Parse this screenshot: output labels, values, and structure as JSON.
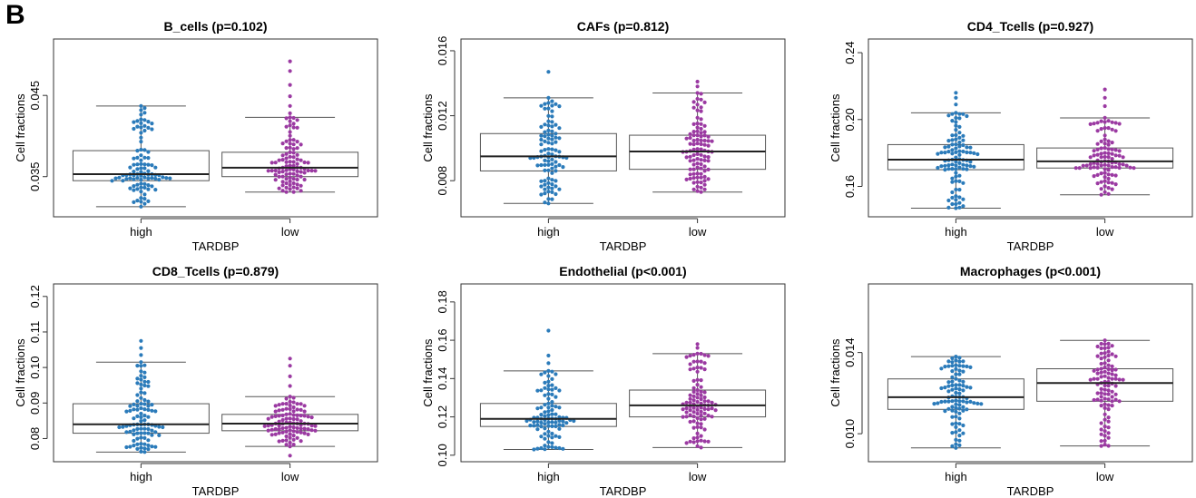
{
  "panel_label": "B",
  "colors": {
    "high": "#2b7bba",
    "low": "#9b3aa2",
    "box": "#555555",
    "median": "#222222"
  },
  "chart_data": [
    {
      "type": "box-beeswarm",
      "title": "B_cells (p=0.102)",
      "xlabel": "TARDBP",
      "ylabel": "Cell fractions",
      "categories": [
        "high",
        "low"
      ],
      "ylim": [
        0.0305,
        0.0515
      ],
      "yticks": [
        0.035,
        0.045
      ],
      "ytick_labels": [
        "0.035",
        "0.045"
      ],
      "groups": [
        {
          "name": "high",
          "min": 0.0313,
          "q1": 0.0345,
          "median": 0.0353,
          "q3": 0.0382,
          "max": 0.0437,
          "outliers": []
        },
        {
          "name": "low",
          "min": 0.0331,
          "q1": 0.035,
          "median": 0.0361,
          "q3": 0.038,
          "max": 0.0423,
          "outliers": [
            0.0428,
            0.0437,
            0.0449,
            0.0463,
            0.048,
            0.0492
          ]
        }
      ]
    },
    {
      "type": "box-beeswarm",
      "title": "CAFs (p=0.812)",
      "xlabel": "TARDBP",
      "ylabel": "Cell fractions",
      "categories": [
        "high",
        "low"
      ],
      "ylim": [
        0.006,
        0.0165
      ],
      "yticks": [
        0.008,
        0.012,
        0.016
      ],
      "ytick_labels": [
        "0.008",
        "0.012",
        "0.016"
      ],
      "groups": [
        {
          "name": "high",
          "min": 0.0066,
          "q1": 0.0086,
          "median": 0.0095,
          "q3": 0.0109,
          "max": 0.0131,
          "outliers": [
            0.0147
          ]
        },
        {
          "name": "low",
          "min": 0.0073,
          "q1": 0.0087,
          "median": 0.0098,
          "q3": 0.0108,
          "max": 0.0134,
          "outliers": [
            0.0138,
            0.0141
          ]
        }
      ]
    },
    {
      "type": "box-beeswarm",
      "title": "CD4_Tcells (p=0.927)",
      "xlabel": "TARDBP",
      "ylabel": "Cell fractions",
      "categories": [
        "high",
        "low"
      ],
      "ylim": [
        0.144,
        0.246
      ],
      "yticks": [
        0.16,
        0.2,
        0.24
      ],
      "ytick_labels": [
        "0.16",
        "0.20",
        "0.24"
      ],
      "groups": [
        {
          "name": "high",
          "min": 0.147,
          "q1": 0.17,
          "median": 0.176,
          "q3": 0.185,
          "max": 0.204,
          "outliers": [
            0.209,
            0.213,
            0.216
          ]
        },
        {
          "name": "low",
          "min": 0.155,
          "q1": 0.171,
          "median": 0.175,
          "q3": 0.183,
          "max": 0.201,
          "outliers": [
            0.208,
            0.213,
            0.218
          ]
        }
      ]
    },
    {
      "type": "box-beeswarm",
      "title": "CD8_Tcells (p=0.879)",
      "xlabel": "TARDBP",
      "ylabel": "Cell fractions",
      "categories": [
        "high",
        "low"
      ],
      "ylim": [
        0.0745,
        0.1225
      ],
      "yticks": [
        0.08,
        0.09,
        0.1,
        0.11,
        0.12
      ],
      "ytick_labels": [
        "0.08",
        "0.09",
        "0.10",
        "0.11",
        "0.12"
      ],
      "groups": [
        {
          "name": "high",
          "min": 0.0762,
          "q1": 0.0815,
          "median": 0.084,
          "q3": 0.0898,
          "max": 0.1015,
          "outliers": [
            0.1035,
            0.1055,
            0.1075
          ]
        },
        {
          "name": "low",
          "min": 0.0778,
          "q1": 0.0822,
          "median": 0.0842,
          "q3": 0.0868,
          "max": 0.0918,
          "outliers": [
            0.0948,
            0.0975,
            0.1005,
            0.1025,
            0.0752
          ]
        }
      ]
    },
    {
      "type": "box-beeswarm",
      "title": "Endothelial (p<0.001)",
      "xlabel": "TARDBP",
      "ylabel": "Cell fractions",
      "categories": [
        "high",
        "low"
      ],
      "ylim": [
        0.0985,
        0.1875
      ],
      "yticks": [
        0.1,
        0.12,
        0.14,
        0.16,
        0.18
      ],
      "ytick_labels": [
        "0.10",
        "0.12",
        "0.14",
        "0.16",
        "0.18"
      ],
      "groups": [
        {
          "name": "high",
          "min": 0.103,
          "q1": 0.115,
          "median": 0.119,
          "q3": 0.127,
          "max": 0.144,
          "outliers": [
            0.148,
            0.152,
            0.165
          ]
        },
        {
          "name": "low",
          "min": 0.104,
          "q1": 0.12,
          "median": 0.126,
          "q3": 0.134,
          "max": 0.153,
          "outliers": [
            0.156,
            0.158
          ]
        }
      ]
    },
    {
      "type": "box-beeswarm",
      "title": "Macrophages (p<0.001)",
      "xlabel": "TARDBP",
      "ylabel": "Cell fractions",
      "categories": [
        "high",
        "low"
      ],
      "ylim": [
        0.0088,
        0.0172
      ],
      "yticks": [
        0.01,
        0.014
      ],
      "ytick_labels": [
        "0.010",
        "0.014"
      ],
      "groups": [
        {
          "name": "high",
          "min": 0.0093,
          "q1": 0.0112,
          "median": 0.0118,
          "q3": 0.0127,
          "max": 0.0138,
          "outliers": []
        },
        {
          "name": "low",
          "min": 0.0094,
          "q1": 0.0116,
          "median": 0.0125,
          "q3": 0.0132,
          "max": 0.0146,
          "outliers": []
        }
      ]
    }
  ]
}
